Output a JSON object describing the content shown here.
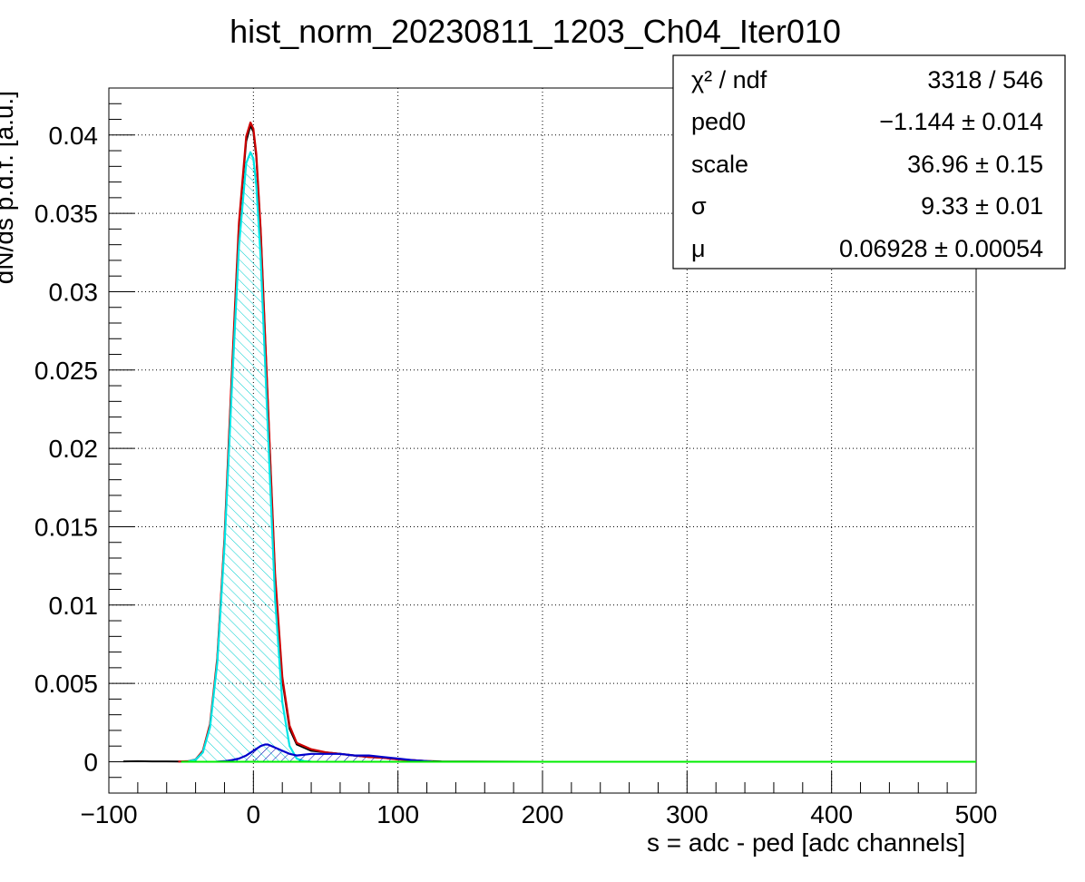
{
  "chart_data": {
    "type": "line",
    "title": "hist_norm_20230811_1203_Ch04_Iter010",
    "xlabel": "s = adc - ped [adc channels]",
    "ylabel": "dN/ds p.d.f. [a.u.]",
    "xlim": [
      -100,
      500
    ],
    "ylim": [
      -0.002,
      0.043
    ],
    "grid": true,
    "x_ticks": [
      -100,
      0,
      100,
      200,
      300,
      400,
      500
    ],
    "x_tick_labels": [
      "−100",
      "0",
      "100",
      "200",
      "300",
      "400",
      "500"
    ],
    "y_ticks": [
      0,
      0.005,
      0.01,
      0.015,
      0.02,
      0.025,
      0.03,
      0.035,
      0.04
    ],
    "y_tick_labels": [
      "0",
      "0.005",
      "0.01",
      "0.015",
      "0.02",
      "0.025",
      "0.03",
      "0.035",
      "0.04"
    ],
    "series": [
      {
        "kind": "histogram",
        "color": "#000000",
        "x": [
          -90,
          -80,
          -70,
          -60,
          -50,
          -45,
          -40,
          -35,
          -30,
          -25,
          -20,
          -15,
          -10,
          -5,
          -2,
          0,
          2,
          5,
          10,
          15,
          20,
          25,
          30,
          40,
          50,
          60,
          70,
          80,
          90,
          100,
          110,
          120,
          130,
          150,
          200,
          300,
          400,
          500
        ],
        "y": [
          2e-05,
          3e-05,
          2e-05,
          2e-05,
          1e-05,
          3e-05,
          0.00012,
          0.0006,
          0.0023,
          0.0065,
          0.0142,
          0.0244,
          0.0342,
          0.0396,
          0.0406,
          0.0402,
          0.0386,
          0.0339,
          0.0228,
          0.0118,
          0.0052,
          0.0021,
          0.0011,
          0.0007,
          0.0006,
          0.0005,
          0.0004,
          0.0003,
          0.00025,
          0.00015,
          0.0001,
          5e-05,
          2e-05,
          1e-05,
          0,
          0,
          0,
          0
        ]
      },
      {
        "kind": "fit-total",
        "color": "#cc0000",
        "x": [
          -52,
          -45,
          -40,
          -35,
          -30,
          -25,
          -20,
          -15,
          -10,
          -5,
          -2,
          0,
          2,
          5,
          10,
          15,
          20,
          25,
          30,
          40,
          50,
          60,
          70,
          80,
          90,
          100,
          110,
          120,
          124
        ],
        "y": [
          1e-05,
          4e-05,
          0.00015,
          0.0007,
          0.0024,
          0.0066,
          0.0143,
          0.0246,
          0.0344,
          0.0399,
          0.0408,
          0.0404,
          0.0388,
          0.034,
          0.0229,
          0.012,
          0.0054,
          0.0023,
          0.0012,
          0.0008,
          0.0006,
          0.0005,
          0.0004,
          0.0003,
          0.00025,
          0.00015,
          0.0001,
          4e-05,
          2e-05
        ]
      },
      {
        "kind": "pedestal-component",
        "color": "#00e5e5",
        "hatched": true,
        "x": [
          -45,
          -40,
          -35,
          -30,
          -25,
          -20,
          -15,
          -10,
          -5,
          -2,
          0,
          2,
          5,
          10,
          15,
          20,
          25,
          30,
          35,
          40
        ],
        "y": [
          3e-05,
          0.00013,
          0.0006,
          0.0022,
          0.0063,
          0.0138,
          0.0236,
          0.0329,
          0.0382,
          0.0389,
          0.0385,
          0.0368,
          0.0322,
          0.0212,
          0.0104,
          0.0038,
          0.001,
          0.0002,
          4e-05,
          1e-05
        ]
      },
      {
        "kind": "signal-component",
        "color": "#0000cc",
        "hatched": true,
        "x": [
          -25,
          -20,
          -15,
          -10,
          -5,
          0,
          5,
          8,
          10,
          15,
          20,
          25,
          30,
          40,
          50,
          60,
          70,
          80,
          90,
          100,
          110,
          120,
          124
        ],
        "y": [
          1e-05,
          3e-05,
          0.0001,
          0.0002,
          0.0004,
          0.0007,
          0.001,
          0.0011,
          0.0011,
          0.0009,
          0.0007,
          0.0005,
          0.0004,
          0.0005,
          0.0005,
          0.0005,
          0.0004,
          0.0004,
          0.0003,
          0.0002,
          0.0001,
          3e-05,
          1e-05
        ]
      },
      {
        "kind": "baseline",
        "color": "#00ee00",
        "x": [
          -50,
          500
        ],
        "y": [
          0,
          0
        ]
      }
    ]
  },
  "stats_box": {
    "rows": [
      {
        "name": "χ² / ndf",
        "value": "3318 / 546"
      },
      {
        "name": "ped0",
        "value": "−1.144 ± 0.014"
      },
      {
        "name": "scale",
        "value": "36.96 ± 0.15"
      },
      {
        "name": "σ",
        "value": "9.33 ± 0.01"
      },
      {
        "name": "μ",
        "value": "0.06928 ± 0.00054"
      }
    ]
  }
}
